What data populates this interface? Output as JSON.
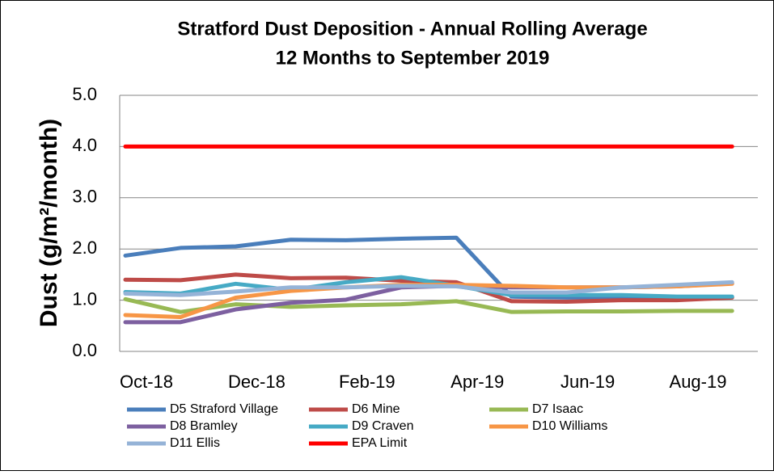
{
  "chart_data": {
    "type": "line",
    "title": "Stratford Dust Deposition - Annual Rolling Average",
    "subtitle": "12 Months to September 2019",
    "y_label": "Dust (g/m²/month)",
    "categories": [
      "Oct-18",
      null,
      "Dec-18",
      null,
      "Feb-19",
      null,
      "Apr-19",
      null,
      "Jun-19",
      null,
      "Aug-19",
      null
    ],
    "ylim": [
      0,
      5
    ],
    "yticks": [
      {
        "value": 0,
        "label": "0.0"
      },
      {
        "value": 1,
        "label": "1.0"
      },
      {
        "value": 2,
        "label": "2.0"
      },
      {
        "value": 3,
        "label": "3.0"
      },
      {
        "value": 4,
        "label": "4.0"
      },
      {
        "value": 5,
        "label": "5.0"
      }
    ],
    "grid": true,
    "legend": "bottom",
    "series": [
      {
        "name": "D5 Straford Village",
        "color": "#4a7ebb",
        "values": [
          1.87,
          2.02,
          2.05,
          2.18,
          2.17,
          2.2,
          2.22,
          1.07,
          1.05,
          1.05,
          1.03,
          1.06
        ]
      },
      {
        "name": "D6 Mine",
        "color": "#be4b48",
        "values": [
          1.4,
          1.39,
          1.5,
          1.43,
          1.44,
          1.38,
          1.35,
          0.98,
          0.97,
          1.0,
          1.0,
          1.05
        ]
      },
      {
        "name": "D7 Isaac",
        "color": "#98b954",
        "values": [
          1.02,
          0.77,
          0.92,
          0.87,
          0.9,
          0.92,
          0.98,
          0.77,
          0.78,
          0.78,
          0.79,
          0.79
        ]
      },
      {
        "name": "D8 Bramley",
        "color": "#7d60a0",
        "values": [
          0.57,
          0.57,
          0.82,
          0.95,
          1.01,
          1.25,
          1.28,
          1.25,
          1.25,
          1.25,
          1.27,
          1.33
        ]
      },
      {
        "name": "D9 Craven",
        "color": "#46aac5",
        "values": [
          1.16,
          1.13,
          1.32,
          1.2,
          1.35,
          1.45,
          1.28,
          1.1,
          1.1,
          1.1,
          1.07,
          1.07
        ]
      },
      {
        "name": "D10 Williams",
        "color": "#f79646",
        "values": [
          0.71,
          0.67,
          1.05,
          1.18,
          1.25,
          1.3,
          1.3,
          1.28,
          1.25,
          1.25,
          1.27,
          1.32
        ]
      },
      {
        "name": "D11 Ellis",
        "color": "#95b3d7",
        "values": [
          1.13,
          1.1,
          1.17,
          1.25,
          1.25,
          1.28,
          1.27,
          1.15,
          1.15,
          1.25,
          1.3,
          1.35
        ]
      },
      {
        "name": "EPA Limit",
        "color": "#ff0000",
        "values": [
          4,
          4,
          4,
          4,
          4,
          4,
          4,
          4,
          4,
          4,
          4,
          4
        ]
      }
    ]
  }
}
